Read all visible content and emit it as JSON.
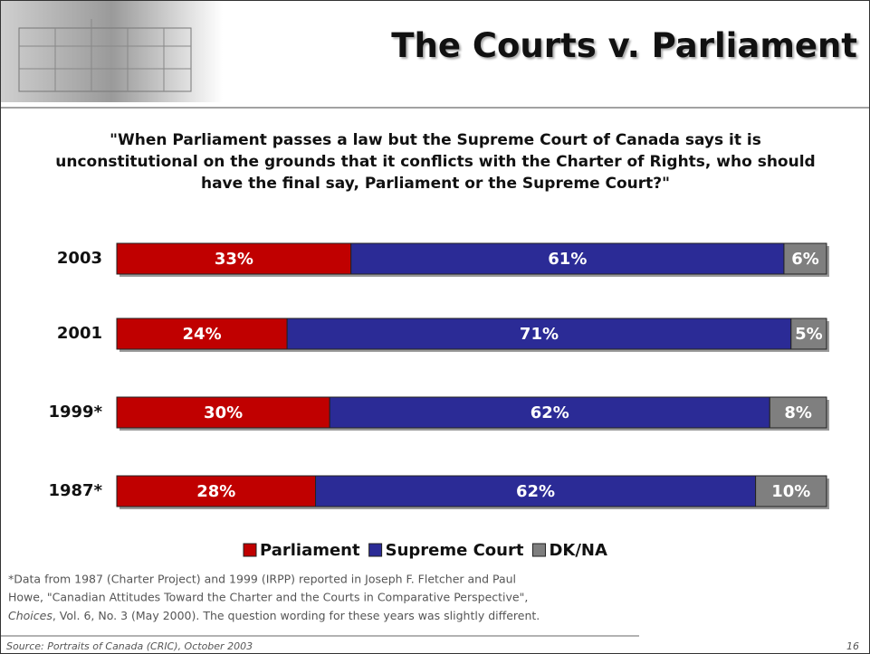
{
  "header": {
    "title": "The Courts v. Parliament"
  },
  "chart_data": {
    "type": "bar",
    "stacked": true,
    "orientation": "horizontal",
    "subtitle": "\"When Parliament passes a law but the Supreme Court of Canada says it is unconstitutional on the grounds that it conflicts with the Charter of Rights, who should have the final say, Parliament or the Supreme Court?\"",
    "categories": [
      "2003",
      "2001",
      "1999*",
      "1987*"
    ],
    "xlim": [
      0,
      100
    ],
    "series": [
      {
        "name": "Parliament",
        "color": "#c00000",
        "values": [
          33,
          24,
          30,
          28
        ],
        "value_labels": [
          "33%",
          "24%",
          "30%",
          "28%"
        ]
      },
      {
        "name": "Supreme Court",
        "color": "#2b2b96",
        "values": [
          61,
          71,
          62,
          62
        ],
        "value_labels": [
          "61%",
          "71%",
          "62%",
          "62%"
        ]
      },
      {
        "name": "DK/NA",
        "color": "#7f7f7f",
        "values": [
          6,
          5,
          8,
          10
        ],
        "value_labels": [
          "6%",
          "5%",
          "8%",
          "10%"
        ]
      }
    ],
    "legend": "bottom"
  },
  "footnote": [
    "*Data from 1987 (Charter Project) and 1999 (IRPP) reported in Joseph F. Fletcher and Paul",
    "Howe, \"Canadian Attitudes Toward the Charter and the Courts in Comparative Perspective\",",
    "Choices",
    ", Vol. 6, No. 3 (May 2000).  The question wording for these years was slightly different."
  ],
  "source": "Source: Portraits of Canada (CRIC), October 2003",
  "page_number": "16"
}
